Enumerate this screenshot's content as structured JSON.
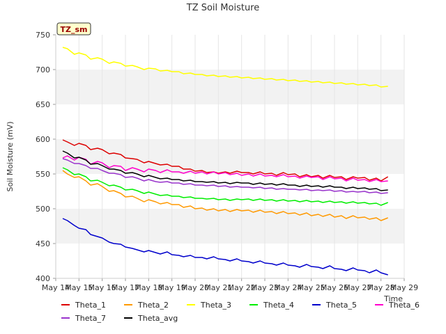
{
  "chart_data": {
    "type": "line",
    "title": "TZ Soil Moisture",
    "badge": "TZ_sm",
    "xlabel": "Time",
    "ylabel": "Soil Moisture (mV)",
    "ylim": [
      400,
      750
    ],
    "xlim": [
      14,
      29
    ],
    "x_ticks": [
      14,
      15,
      16,
      17,
      18,
      19,
      20,
      21,
      22,
      23,
      24,
      25,
      26,
      27,
      28,
      29
    ],
    "x_tick_labels": [
      "May 14",
      "May 15",
      "May 16",
      "May 17",
      "May 18",
      "May 19",
      "May 20",
      "May 21",
      "May 22",
      "May 23",
      "May 24",
      "May 25",
      "May 26",
      "May 27",
      "May 28",
      "May 29"
    ],
    "y_ticks": [
      400,
      450,
      500,
      550,
      600,
      650,
      700,
      750
    ],
    "grid": "horizontal bands",
    "legend_position": "bottom",
    "x": [
      14.3,
      14.5,
      14.8,
      15.0,
      15.3,
      15.5,
      15.8,
      16.0,
      16.3,
      16.5,
      16.8,
      17.0,
      17.3,
      17.5,
      17.8,
      18.0,
      18.3,
      18.5,
      18.8,
      19.0,
      19.3,
      19.5,
      19.8,
      20.0,
      20.3,
      20.5,
      20.8,
      21.0,
      21.3,
      21.5,
      21.8,
      22.0,
      22.3,
      22.5,
      22.8,
      23.0,
      23.3,
      23.5,
      23.8,
      24.0,
      24.3,
      24.5,
      24.8,
      25.0,
      25.3,
      25.5,
      25.8,
      26.0,
      26.3,
      26.5,
      26.8,
      27.0,
      27.3,
      27.5,
      27.8,
      28.0,
      28.3
    ],
    "series": [
      {
        "name": "Theta_1",
        "color": "#dd0000",
        "values": [
          599,
          596,
          591,
          594,
          591,
          585,
          587,
          585,
          579,
          580,
          578,
          573,
          572,
          571,
          566,
          568,
          565,
          563,
          564,
          561,
          561,
          557,
          557,
          554,
          555,
          552,
          553,
          551,
          553,
          551,
          554,
          552,
          552,
          550,
          553,
          550,
          551,
          548,
          552,
          549,
          550,
          546,
          549,
          546,
          548,
          544,
          548,
          545,
          546,
          542,
          546,
          544,
          545,
          541,
          544,
          540,
          546
        ]
      },
      {
        "name": "Theta_2",
        "color": "#ff9900",
        "values": [
          555,
          550,
          545,
          546,
          540,
          534,
          536,
          532,
          525,
          526,
          522,
          517,
          518,
          515,
          510,
          513,
          510,
          507,
          509,
          506,
          506,
          502,
          504,
          500,
          501,
          498,
          500,
          497,
          499,
          496,
          499,
          497,
          498,
          495,
          498,
          495,
          496,
          493,
          496,
          493,
          494,
          491,
          494,
          490,
          492,
          489,
          492,
          488,
          490,
          486,
          490,
          487,
          488,
          485,
          487,
          483,
          487
        ]
      },
      {
        "name": "Theta_3",
        "color": "#ffff00",
        "values": [
          732,
          730,
          722,
          724,
          721,
          715,
          717,
          715,
          709,
          711,
          709,
          705,
          706,
          704,
          700,
          702,
          701,
          698,
          699,
          697,
          697,
          694,
          695,
          693,
          693,
          691,
          692,
          690,
          691,
          689,
          690,
          688,
          689,
          687,
          688,
          686,
          687,
          685,
          686,
          684,
          685,
          683,
          684,
          682,
          683,
          681,
          682,
          680,
          681,
          679,
          680,
          678,
          679,
          677,
          678,
          675,
          676
        ]
      },
      {
        "name": "Theta_4",
        "color": "#00ee00",
        "values": [
          559,
          556,
          549,
          550,
          546,
          540,
          541,
          538,
          533,
          534,
          531,
          527,
          528,
          526,
          522,
          524,
          521,
          519,
          520,
          518,
          518,
          516,
          517,
          515,
          515,
          514,
          515,
          513,
          514,
          512,
          514,
          513,
          514,
          512,
          514,
          512,
          513,
          511,
          513,
          511,
          512,
          510,
          512,
          510,
          511,
          509,
          511,
          509,
          510,
          508,
          510,
          508,
          509,
          507,
          508,
          505,
          509
        ]
      },
      {
        "name": "Theta_5",
        "color": "#0000cc",
        "values": [
          486,
          483,
          476,
          472,
          470,
          463,
          460,
          458,
          452,
          450,
          449,
          445,
          443,
          441,
          438,
          440,
          437,
          435,
          438,
          434,
          433,
          431,
          433,
          430,
          430,
          428,
          431,
          428,
          427,
          425,
          428,
          425,
          424,
          422,
          425,
          422,
          421,
          419,
          422,
          419,
          418,
          416,
          420,
          417,
          416,
          414,
          418,
          414,
          413,
          411,
          415,
          412,
          411,
          408,
          412,
          408,
          405
        ]
      },
      {
        "name": "Theta_6",
        "color": "#ff00cc",
        "values": [
          573,
          576,
          570,
          574,
          571,
          564,
          568,
          566,
          559,
          562,
          561,
          555,
          559,
          557,
          553,
          557,
          555,
          552,
          556,
          553,
          553,
          551,
          554,
          551,
          553,
          550,
          553,
          550,
          552,
          549,
          551,
          548,
          550,
          547,
          550,
          547,
          548,
          546,
          549,
          546,
          547,
          544,
          547,
          545,
          546,
          542,
          546,
          543,
          544,
          540,
          544,
          541,
          542,
          539,
          542,
          539,
          540
        ]
      },
      {
        "name": "Theta_7",
        "color": "#9933cc",
        "values": [
          572,
          570,
          565,
          565,
          562,
          558,
          558,
          555,
          551,
          551,
          549,
          545,
          546,
          544,
          540,
          542,
          539,
          538,
          539,
          537,
          537,
          535,
          536,
          534,
          534,
          533,
          534,
          532,
          533,
          531,
          532,
          531,
          531,
          530,
          531,
          529,
          530,
          528,
          529,
          528,
          528,
          527,
          528,
          526,
          527,
          526,
          527,
          525,
          526,
          524,
          525,
          524,
          525,
          523,
          524,
          522,
          523
        ]
      },
      {
        "name": "Theta_avg",
        "color": "#000000",
        "values": [
          583,
          580,
          573,
          574,
          570,
          564,
          565,
          562,
          557,
          557,
          555,
          551,
          552,
          550,
          546,
          548,
          545,
          543,
          544,
          542,
          542,
          540,
          541,
          539,
          539,
          538,
          539,
          537,
          538,
          536,
          538,
          537,
          537,
          535,
          537,
          535,
          536,
          534,
          536,
          534,
          534,
          532,
          534,
          532,
          533,
          531,
          533,
          531,
          531,
          529,
          531,
          529,
          530,
          528,
          529,
          526,
          527
        ]
      }
    ]
  }
}
